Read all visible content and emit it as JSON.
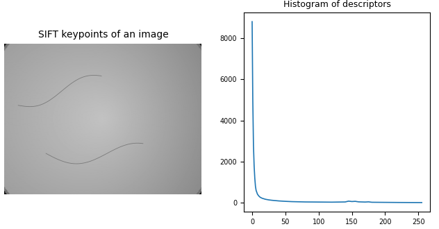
{
  "image": {
    "title": "SIFT keypoints of an image"
  },
  "chart_data": {
    "type": "line",
    "title": "Histogram of descriptors",
    "x": [
      0,
      1,
      2,
      3,
      4,
      5,
      6,
      8,
      10,
      12,
      15,
      20,
      25,
      30,
      40,
      50,
      60,
      80,
      100,
      120,
      140,
      145,
      150,
      155,
      160,
      170,
      175,
      180,
      200,
      220,
      240,
      255
    ],
    "values": [
      8800,
      5000,
      2800,
      1800,
      1200,
      800,
      600,
      420,
      330,
      270,
      220,
      170,
      140,
      120,
      90,
      70,
      55,
      40,
      35,
      30,
      40,
      80,
      60,
      70,
      45,
      35,
      45,
      25,
      20,
      15,
      12,
      10
    ],
    "color": "#1f77b4",
    "xlim": [
      -12.75,
      267.75
    ],
    "xticks": [
      0,
      50,
      100,
      150,
      200,
      250
    ],
    "ylim": [
      -440,
      9240
    ],
    "yticks": [
      0,
      2000,
      4000,
      6000,
      8000
    ]
  }
}
